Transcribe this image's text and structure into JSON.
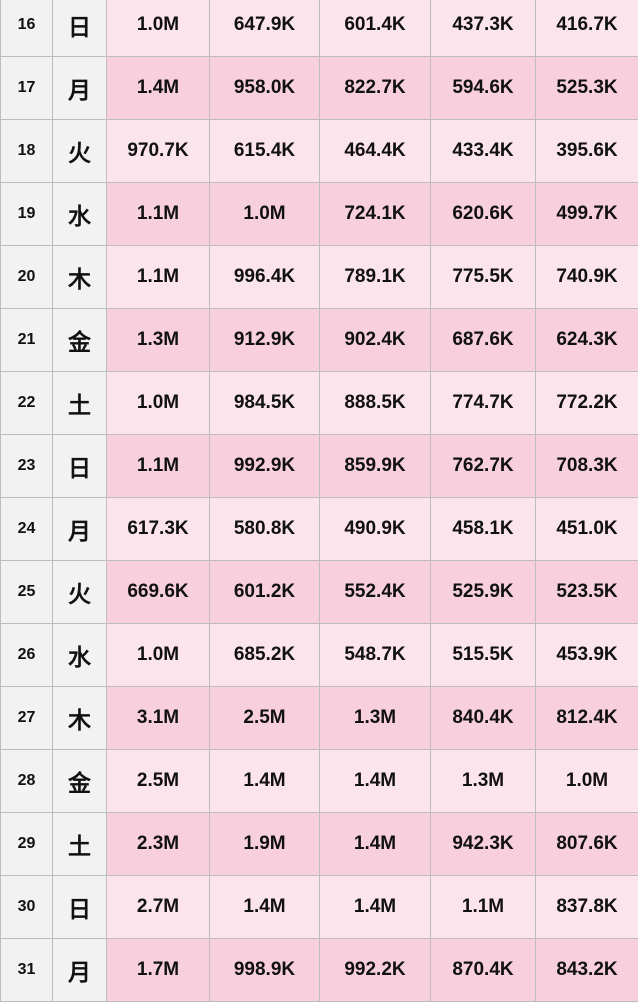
{
  "rows": [
    {
      "day": "16",
      "weekday": "日",
      "values": [
        "1.0M",
        "647.9K",
        "601.4K",
        "437.3K",
        "416.7K"
      ]
    },
    {
      "day": "17",
      "weekday": "月",
      "values": [
        "1.4M",
        "958.0K",
        "822.7K",
        "594.6K",
        "525.3K"
      ]
    },
    {
      "day": "18",
      "weekday": "火",
      "values": [
        "970.7K",
        "615.4K",
        "464.4K",
        "433.4K",
        "395.6K"
      ]
    },
    {
      "day": "19",
      "weekday": "水",
      "values": [
        "1.1M",
        "1.0M",
        "724.1K",
        "620.6K",
        "499.7K"
      ]
    },
    {
      "day": "20",
      "weekday": "木",
      "values": [
        "1.1M",
        "996.4K",
        "789.1K",
        "775.5K",
        "740.9K"
      ]
    },
    {
      "day": "21",
      "weekday": "金",
      "values": [
        "1.3M",
        "912.9K",
        "902.4K",
        "687.6K",
        "624.3K"
      ]
    },
    {
      "day": "22",
      "weekday": "土",
      "values": [
        "1.0M",
        "984.5K",
        "888.5K",
        "774.7K",
        "772.2K"
      ]
    },
    {
      "day": "23",
      "weekday": "日",
      "values": [
        "1.1M",
        "992.9K",
        "859.9K",
        "762.7K",
        "708.3K"
      ]
    },
    {
      "day": "24",
      "weekday": "月",
      "values": [
        "617.3K",
        "580.8K",
        "490.9K",
        "458.1K",
        "451.0K"
      ]
    },
    {
      "day": "25",
      "weekday": "火",
      "values": [
        "669.6K",
        "601.2K",
        "552.4K",
        "525.9K",
        "523.5K"
      ]
    },
    {
      "day": "26",
      "weekday": "水",
      "values": [
        "1.0M",
        "685.2K",
        "548.7K",
        "515.5K",
        "453.9K"
      ]
    },
    {
      "day": "27",
      "weekday": "木",
      "values": [
        "3.1M",
        "2.5M",
        "1.3M",
        "840.4K",
        "812.4K"
      ]
    },
    {
      "day": "28",
      "weekday": "金",
      "values": [
        "2.5M",
        "1.4M",
        "1.4M",
        "1.3M",
        "1.0M"
      ]
    },
    {
      "day": "29",
      "weekday": "土",
      "values": [
        "2.3M",
        "1.9M",
        "1.4M",
        "942.3K",
        "807.6K"
      ]
    },
    {
      "day": "30",
      "weekday": "日",
      "values": [
        "2.7M",
        "1.4M",
        "1.4M",
        "1.1M",
        "837.8K"
      ]
    },
    {
      "day": "31",
      "weekday": "月",
      "values": [
        "1.7M",
        "998.9K",
        "992.2K",
        "870.4K",
        "843.2K"
      ]
    }
  ],
  "colors": {
    "header_cell_bg": "#f2f2f2",
    "row_bg_light": "#fce4ec",
    "row_bg_dark": "#f8d0dd",
    "grid_line": "#bdbdbd"
  }
}
